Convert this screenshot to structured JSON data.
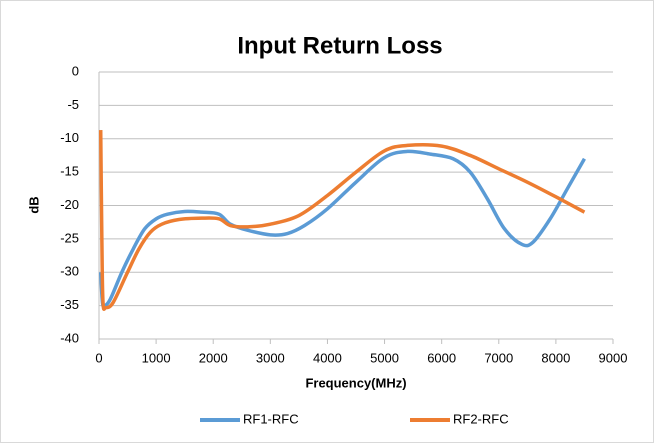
{
  "chart_data": {
    "type": "line",
    "title": "Input Return Loss",
    "x_label": "Frequency(MHz)",
    "y_label": "dB",
    "xlim": [
      0,
      9000
    ],
    "xticks": [
      0,
      1000,
      2000,
      3000,
      4000,
      5000,
      6000,
      7000,
      8000,
      9000
    ],
    "ylim": [
      -40,
      0
    ],
    "yticks": [
      0,
      -5,
      -10,
      -15,
      -20,
      -25,
      -30,
      -35,
      -40
    ],
    "grid": true,
    "legend": "bottom",
    "series": [
      {
        "name": "RF1-RFC",
        "color": "#5b9bd5",
        "x": [
          30,
          60,
          100,
          200,
          400,
          600,
          800,
          1000,
          1200,
          1500,
          1800,
          2100,
          2300,
          2600,
          3000,
          3300,
          3600,
          4000,
          4500,
          5000,
          5400,
          5800,
          6200,
          6500,
          6800,
          7100,
          7400,
          7600,
          7900,
          8200,
          8500
        ],
        "values": [
          -30,
          -34.5,
          -35,
          -34,
          -30,
          -26.5,
          -23.5,
          -22,
          -21.3,
          -20.9,
          -21,
          -21.3,
          -22.8,
          -23.7,
          -24.4,
          -24.2,
          -23,
          -20.5,
          -16.5,
          -12.8,
          -11.9,
          -12.3,
          -13,
          -15,
          -19,
          -23.5,
          -25.8,
          -25.5,
          -22,
          -17.5,
          -13
        ]
      },
      {
        "name": "RF2-RFC",
        "color": "#ed7d31",
        "x": [
          30,
          50,
          70,
          120,
          250,
          500,
          700,
          900,
          1100,
          1400,
          1800,
          2100,
          2300,
          2600,
          3000,
          3500,
          4000,
          4500,
          5000,
          5400,
          6000,
          6500,
          7000,
          7500,
          8000,
          8500
        ],
        "values": [
          -8.7,
          -25,
          -34.5,
          -35.3,
          -34.5,
          -30,
          -26.5,
          -24,
          -22.8,
          -22.1,
          -21.9,
          -22,
          -23,
          -23.2,
          -22.8,
          -21.5,
          -18.5,
          -15,
          -11.8,
          -11,
          -11.1,
          -12.5,
          -14.5,
          -16.5,
          -18.7,
          -21
        ]
      }
    ]
  }
}
